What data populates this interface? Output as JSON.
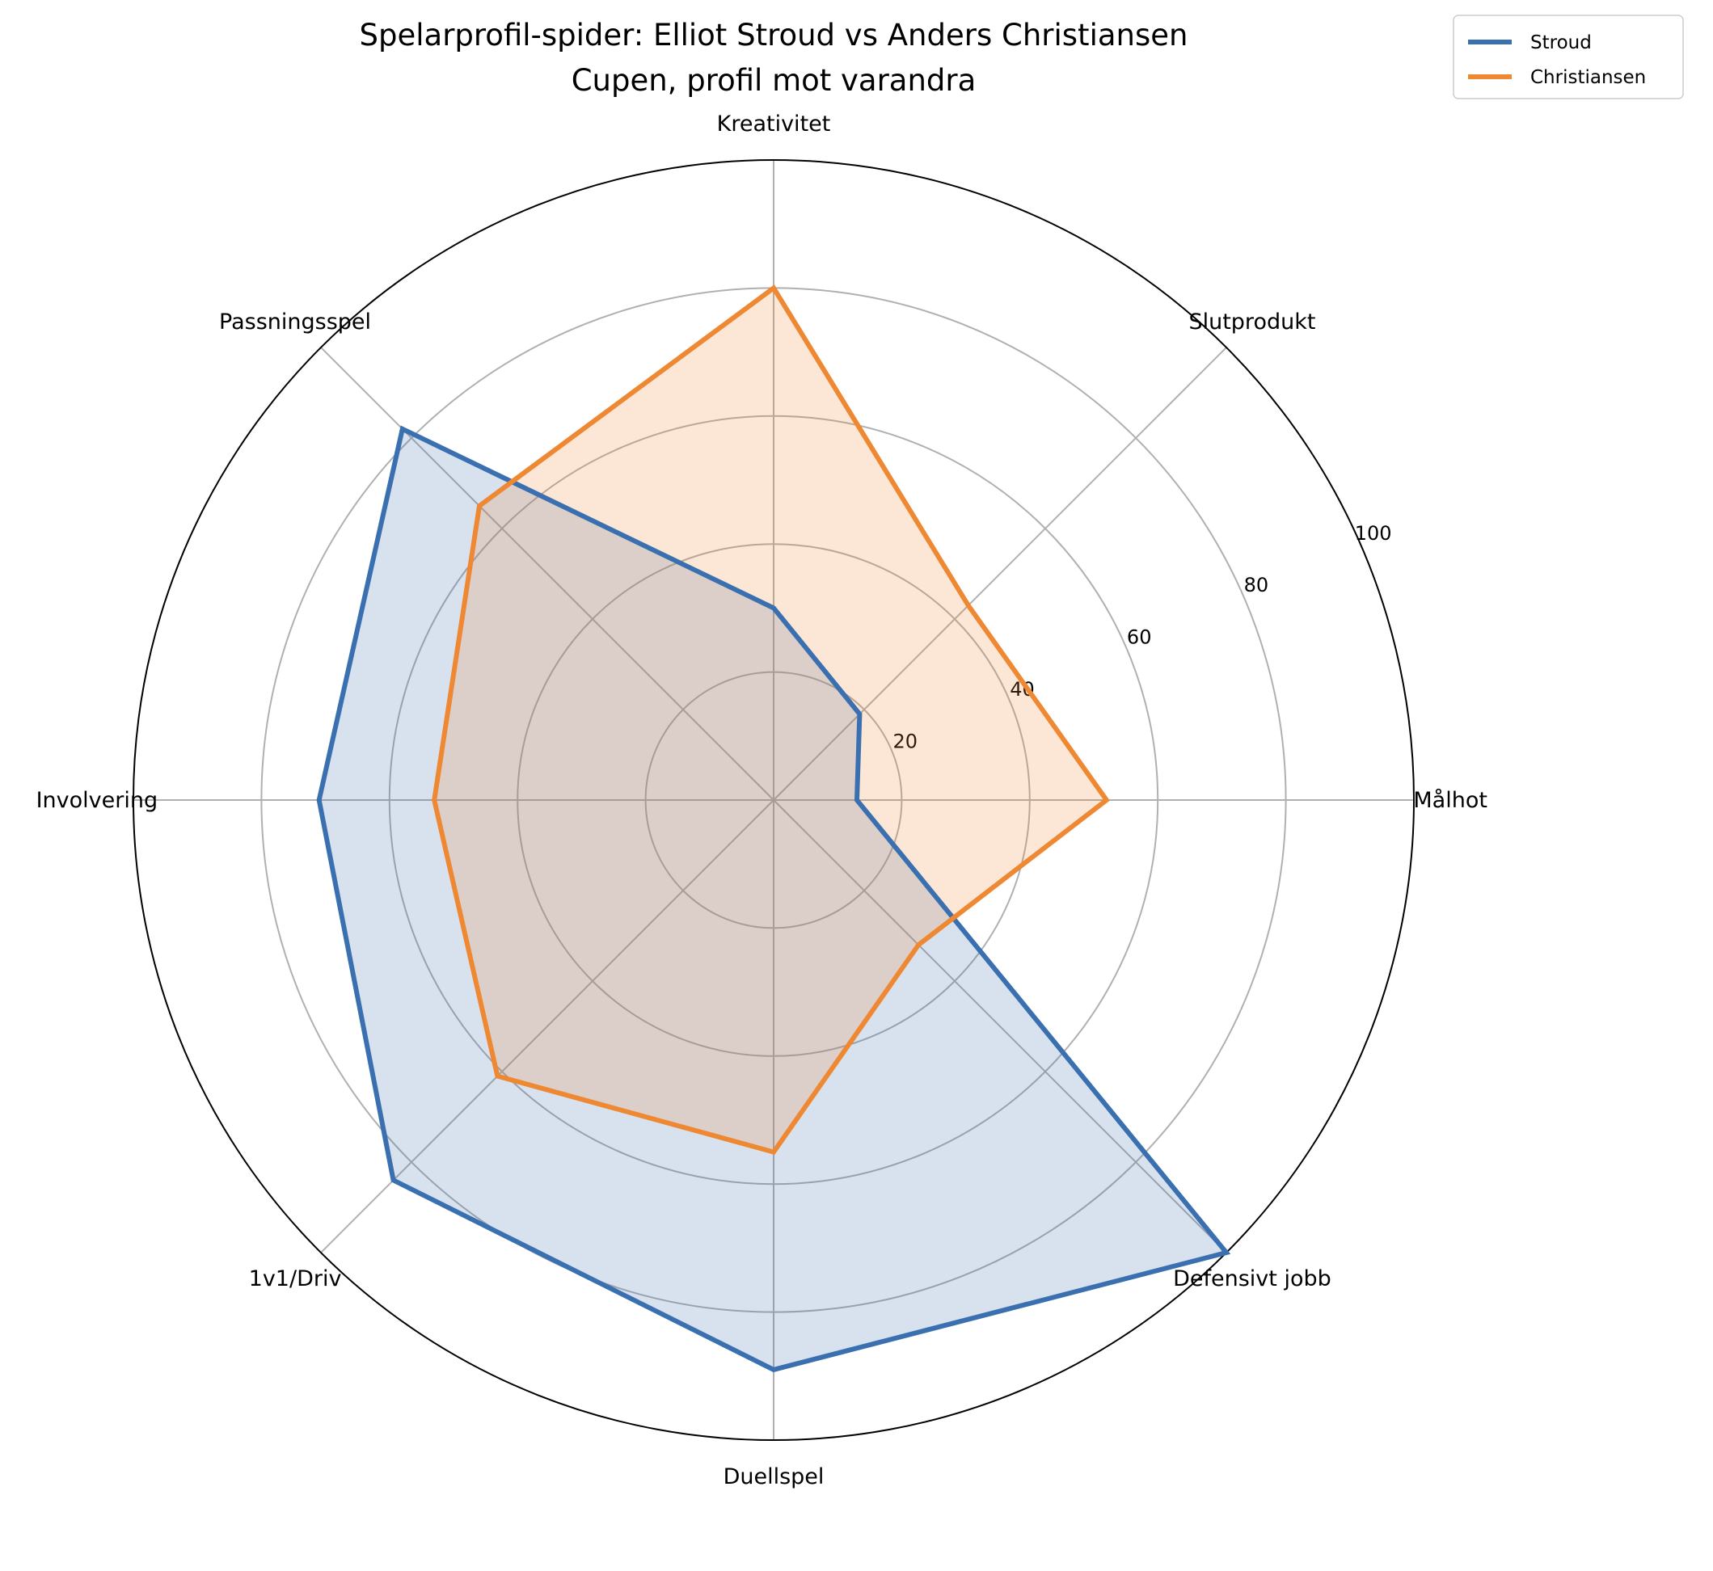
{
  "chart_data": {
    "type": "radar",
    "title": "Spelarprofil-spider: Elliot Stroud vs Anders Christiansen",
    "subtitle": "Cupen, profil mot varandra",
    "categories": [
      "Målhot",
      "Slutprodukt",
      "Kreativitet",
      "Passningsspel",
      "Involvering",
      "1v1/Driv",
      "Duellspel",
      "Defensivt jobb"
    ],
    "rlim": [
      0,
      100
    ],
    "rticks": [
      "20",
      "40",
      "60",
      "80",
      "100"
    ],
    "rtick_values": [
      20,
      40,
      60,
      80,
      100
    ],
    "grid": true,
    "legend_position": "top-right",
    "series": [
      {
        "name": "Stroud",
        "color": "#3a70b0",
        "values": [
          13,
          19,
          30,
          82,
          71,
          84,
          89,
          100
        ]
      },
      {
        "name": "Christiansen",
        "color": "#ef8832",
        "values": [
          52,
          43,
          80,
          65,
          53,
          61,
          55,
          32
        ]
      }
    ]
  }
}
